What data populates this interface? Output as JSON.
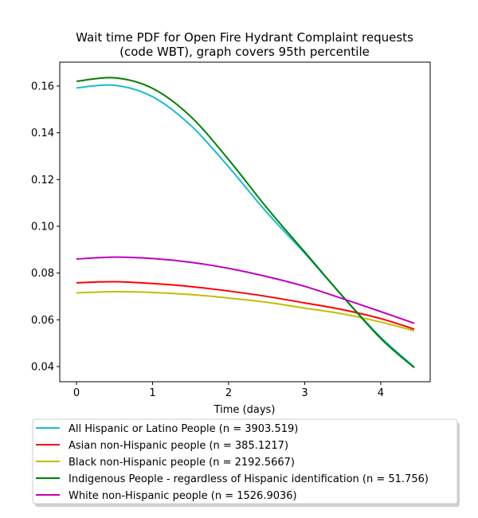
{
  "chart_data": {
    "type": "line",
    "title": "Wait time PDF for Open Fire Hydrant Complaint  requests",
    "subtitle": "(code WBT), graph covers 95th percentile",
    "xlabel": "Time (days)",
    "ylabel": "",
    "xlim": [
      -0.22,
      4.65
    ],
    "ylim": [
      0.0335,
      0.1702
    ],
    "xticks": [
      0,
      1,
      2,
      3,
      4
    ],
    "yticks": [
      0.04,
      0.06,
      0.08,
      0.1,
      0.12,
      0.14,
      0.16
    ],
    "xtick_labels": [
      "0",
      "1",
      "2",
      "3",
      "4"
    ],
    "ytick_labels": [
      "0.04",
      "0.06",
      "0.08",
      "0.10",
      "0.12",
      "0.14",
      "0.16"
    ],
    "legend_placement": "below",
    "grid": false,
    "x": [
      0,
      0.5,
      1,
      1.5,
      2,
      2.5,
      3,
      3.5,
      4,
      4.44
    ],
    "series": [
      {
        "name": "All Hispanic or Latino People (n = 3903.519)",
        "color": "#17becf",
        "values": [
          0.1592,
          0.1603,
          0.1554,
          0.1432,
          0.1254,
          0.106,
          0.0885,
          0.07,
          0.0525,
          0.0398
        ]
      },
      {
        "name": "Asian non-Hispanic people (n = 385.1217)",
        "color": "#ff0000",
        "values": [
          0.0758,
          0.0763,
          0.0755,
          0.0742,
          0.0723,
          0.07,
          0.0672,
          0.0643,
          0.0605,
          0.056
        ]
      },
      {
        "name": "Black non-Hispanic people (n = 2192.5667)",
        "color": "#bfbf00",
        "values": [
          0.0715,
          0.072,
          0.0717,
          0.0708,
          0.0693,
          0.0675,
          0.065,
          0.0625,
          0.059,
          0.0553
        ]
      },
      {
        "name": "Indigenous People - regardless of Hispanic identification (n = 51.756)",
        "color": "#008000",
        "values": [
          0.162,
          0.1635,
          0.159,
          0.147,
          0.1285,
          0.108,
          0.089,
          0.07,
          0.052,
          0.0395
        ]
      },
      {
        "name": "White non-Hispanic people (n = 1526.9036)",
        "color": "#bf00bf",
        "values": [
          0.086,
          0.0868,
          0.0862,
          0.0846,
          0.082,
          0.0785,
          0.0743,
          0.069,
          0.0635,
          0.0585
        ]
      }
    ]
  }
}
